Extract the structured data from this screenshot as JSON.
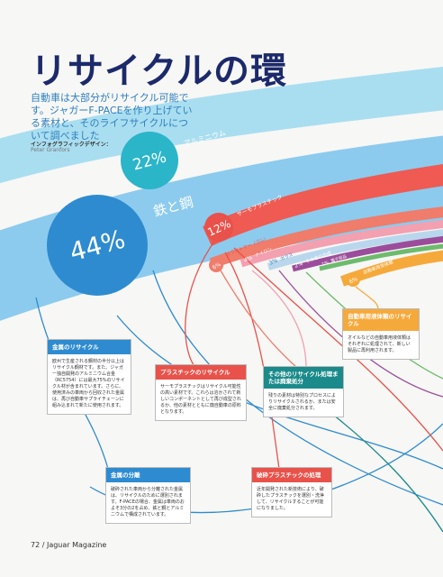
{
  "title": "リサイクルの環",
  "intro": "自動車は大部分がリサイクル可能です。ジャガーF-PACEを作り上げている素材と、そのライフサイクルについて調べました",
  "credit": {
    "label": "インフォグラフィックデザイン：",
    "name": "Peter Granfors"
  },
  "materials": [
    {
      "percent": "22%",
      "name": "アルミニウム"
    },
    {
      "percent": "44%",
      "name": "鉄と鋼"
    },
    {
      "percent": "12%",
      "name": "サーモプラスチック"
    },
    {
      "percent": "6%",
      "name": "エラストマー（ゴム）"
    },
    {
      "percent": "4%",
      "name": "ナイロン"
    },
    {
      "percent": "3%",
      "name": "ガラス"
    },
    {
      "percent": "2%",
      "name": "その他の合成"
    },
    {
      "percent": "1%",
      "name": "電子部品"
    },
    {
      "percent": "6%",
      "name": "自動車用液体類"
    }
  ],
  "boxes": [
    {
      "title": "金属のリサイクル",
      "body": "欧州で生産される鋼材の半分以上はリサイクル鋼材です。また、ジャガー独自開発のアルミニウム合金（RC5754）には最大75%のリサイクル材が含まれています。さらに、使用済みの車両から回収された金属は、再び自動車サプライチェーンに組み込まれて新たに使用されます。"
    },
    {
      "title": "プラスチックのリサイクル",
      "body": "サーモプラスチックはリサイクル可能性の高い素材です。これらは溶かされて新しいコンポーネントとして再び成型されるか、他の素材とともに廃自動車の原料となります。"
    },
    {
      "title": "その他のリサイクル処理または廃棄処分",
      "body": "残りの素材は特別なプロセスによりリサイクルされるか、または安全に廃棄処分されます。"
    },
    {
      "title": "自動車用液体類のリサイクル",
      "body": "オイルなどの自動車用液体類はそれぞれに処理されて、新しい製品に再利用されます。"
    },
    {
      "title": "金属の分離",
      "body": "破砕された車両から分離された金属は、リサイクルのために選別されます。F-PACEの場合、金属は車両のおよそ3分の2を占め、鉄と鋼とアルミニウムで構成されています。"
    },
    {
      "title": "破砕プラスチックの処理",
      "body": "近年開発された新技術により、破砕したプラスチックを選別・洗浄して、リサイクルすることが可能になりました。"
    }
  ],
  "footer": "72 / Jaguar Magazine"
}
